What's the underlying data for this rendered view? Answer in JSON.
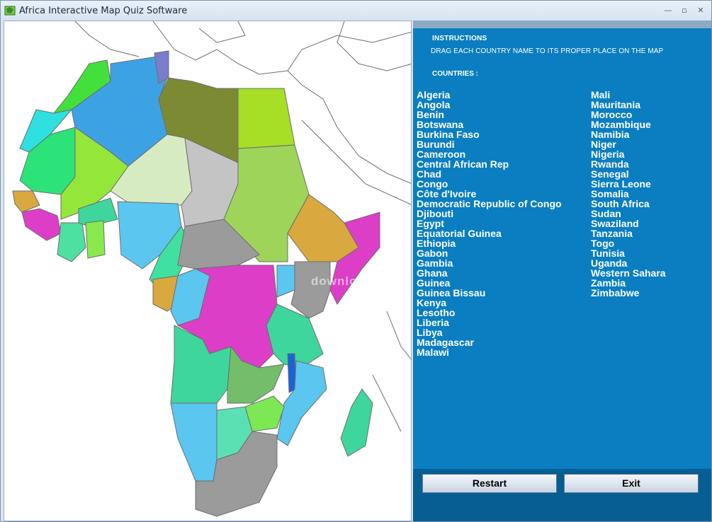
{
  "window": {
    "title": "Africa Interactive Map Quiz Software"
  },
  "instructions": {
    "title": "INSTRUCTIONS",
    "text": "DRAG EACH COUNTRY NAME TO ITS PROPER PLACE ON THE MAP",
    "countries_title": "COUNTRIES :"
  },
  "countries_left": [
    "Algeria",
    "Angola",
    "Benin",
    "Botswana",
    "Burkina Faso",
    "Burundi",
    "Cameroon",
    "Central African Rep",
    "Chad",
    "Congo",
    "Côte d'Ivoire",
    "Democratic Republic of Congo",
    "Djibouti",
    "Egypt",
    "Equatorial Guinea",
    "Ethiopia",
    "Gabon",
    "Gambia",
    "Ghana",
    "Guinea",
    "Guinea Bissau",
    "Kenya",
    "Lesotho",
    "Liberia",
    "Libya",
    "Madagascar",
    "Malawi"
  ],
  "countries_right": [
    "Mali",
    "Mauritania",
    "Morocco",
    "Mozambique",
    "Namibia",
    "Niger",
    "Nigeria",
    "Rwanda",
    "Senegal",
    "Sierra Leone",
    "Somalia",
    "South Africa",
    "Sudan",
    "Swaziland",
    "Tanzania",
    "Togo",
    "Tunisia",
    "Uganda",
    "Western Sahara",
    "Zambia",
    "Zimbabwe"
  ],
  "buttons": {
    "restart": "Restart",
    "exit": "Exit"
  },
  "watermark": "download",
  "colors": {
    "panel": "#0a7ec0",
    "panel_bottom": "#065e93",
    "map_bg": "#ffffff"
  }
}
